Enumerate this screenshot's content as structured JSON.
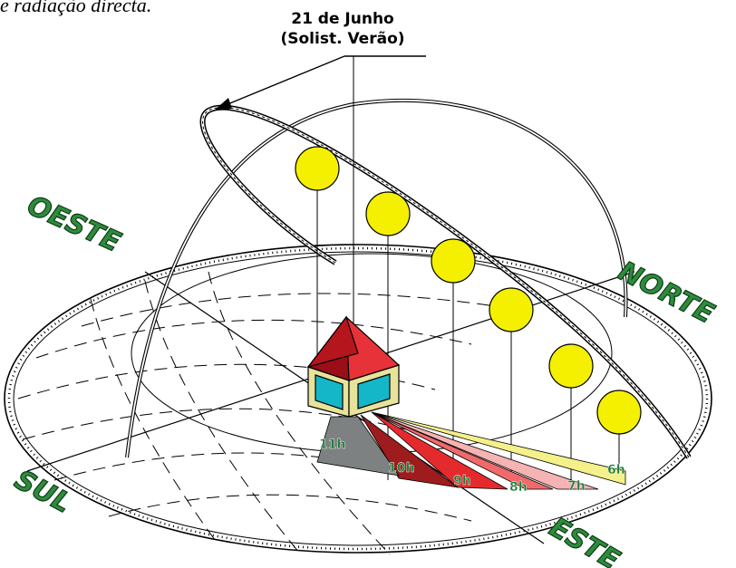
{
  "intro_text": "e radiação directa.",
  "callout": {
    "line1": "21 de Junho",
    "line2": "(Solist. Verão)"
  },
  "directions": {
    "west": "OESTE",
    "north": "NORTE",
    "south": "SUL",
    "east": "ESTE"
  },
  "hours": [
    "11h",
    "10h",
    "9h",
    "8h",
    "7h",
    "6h"
  ],
  "colors": {
    "sun": "#f4f000",
    "direction_text": "#2e8b3c",
    "hour_text": "#1f7a35",
    "roof_light": "#e8323a",
    "roof_dark": "#9a0f16",
    "wall": "#e7e39a",
    "window": "#14b7c7",
    "shadow_11h": "#7d8181",
    "shadow_10h": "#9e1b1e",
    "shadow_9h": "#e52a2e",
    "shadow_8h": "#f06a6c",
    "shadow_7h": "#f6b3b3",
    "shadow_6h": "#f4f08a"
  }
}
